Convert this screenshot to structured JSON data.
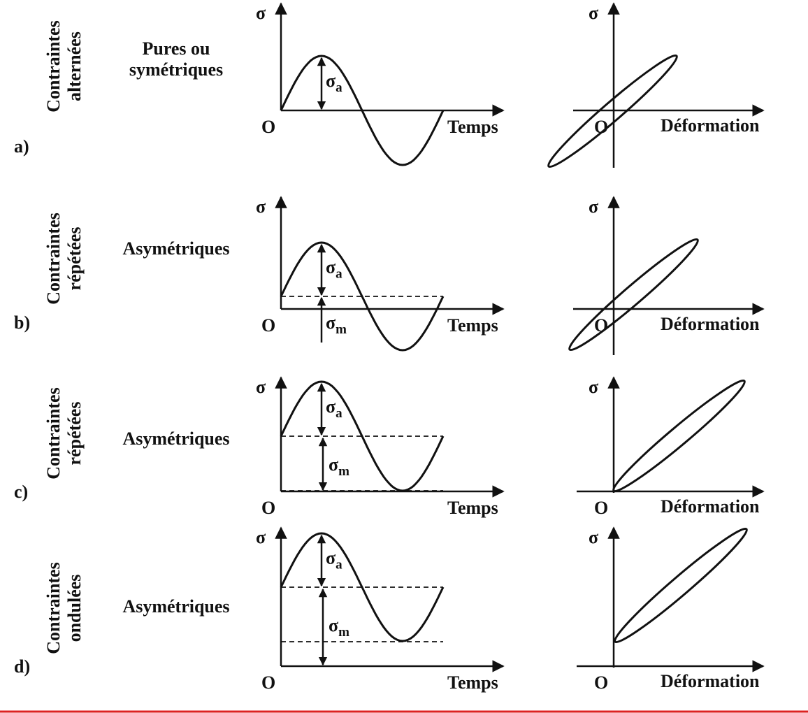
{
  "rows": [
    {
      "letter": "a)",
      "category": [
        "Contraintes",
        "alternées"
      ],
      "description": [
        "Pures ou",
        "symétriques"
      ],
      "time_plot": {
        "y_label": "σ",
        "origin": "O",
        "x_label": "Temps",
        "amplitude": {
          "symbol": "σ",
          "sub": "a"
        }
      },
      "strain_plot": {
        "y_label": "σ",
        "origin": "O",
        "x_label": "Déformation"
      }
    },
    {
      "letter": "b)",
      "category": [
        "Contraintes",
        "répétées"
      ],
      "description": [
        "Asymétriques"
      ],
      "time_plot": {
        "y_label": "σ",
        "origin": "O",
        "x_label": "Temps",
        "amplitude": {
          "symbol": "σ",
          "sub": "a"
        },
        "mean": {
          "symbol": "σ",
          "sub": "m"
        }
      },
      "strain_plot": {
        "y_label": "σ",
        "origin": "O",
        "x_label": "Déformation"
      }
    },
    {
      "letter": "c)",
      "category": [
        "Contraintes",
        "répétées"
      ],
      "description": [
        "Asymétriques"
      ],
      "time_plot": {
        "y_label": "σ",
        "origin": "O",
        "x_label": "Temps",
        "amplitude": {
          "symbol": "σ",
          "sub": "a"
        },
        "mean": {
          "symbol": "σ",
          "sub": "m"
        }
      },
      "strain_plot": {
        "y_label": "σ",
        "origin": "O",
        "x_label": "Déformation"
      }
    },
    {
      "letter": "d)",
      "category": [
        "Contraintes",
        "ondulées"
      ],
      "description": [
        "Asymétriques"
      ],
      "time_plot": {
        "y_label": "σ",
        "origin": "O",
        "x_label": "Temps",
        "amplitude": {
          "symbol": "σ",
          "sub": "a"
        },
        "mean": {
          "symbol": "σ",
          "sub": "m"
        }
      },
      "strain_plot": {
        "y_label": "σ",
        "origin": "O",
        "x_label": "Déformation"
      }
    }
  ]
}
